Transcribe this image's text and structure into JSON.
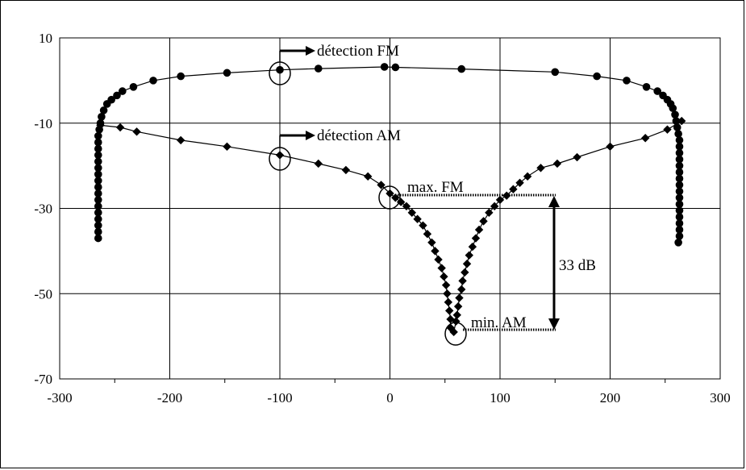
{
  "chart_data": {
    "type": "scatter",
    "title": "",
    "xlabel": "",
    "ylabel": "",
    "xlim": [
      -300,
      300
    ],
    "ylim": [
      -70,
      10
    ],
    "x_ticks": [
      -300,
      -200,
      -100,
      0,
      100,
      200,
      300
    ],
    "y_ticks": [
      10,
      -10,
      -30,
      -50,
      -70
    ],
    "x_tick_labels": [
      "-300",
      "-200",
      "-100",
      "0",
      "100",
      "200",
      "300"
    ],
    "y_tick_labels": [
      "10",
      "-10",
      "-30",
      "-50",
      "-70"
    ],
    "grid": true,
    "legend": "none",
    "series": [
      {
        "marker": "circle",
        "color": "#000000",
        "points": [
          [
            -265,
            -37
          ],
          [
            -265,
            -35.5
          ],
          [
            -265,
            -34
          ],
          [
            -265,
            -32.5
          ],
          [
            -265,
            -31
          ],
          [
            -265,
            -29.5
          ],
          [
            -265,
            -28
          ],
          [
            -265,
            -26.5
          ],
          [
            -265,
            -25
          ],
          [
            -265,
            -23.5
          ],
          [
            -265,
            -22
          ],
          [
            -265,
            -20.5
          ],
          [
            -265,
            -19
          ],
          [
            -265,
            -17.5
          ],
          [
            -265,
            -16
          ],
          [
            -265,
            -14.5
          ],
          [
            -265,
            -13
          ],
          [
            -264,
            -11.5
          ],
          [
            -263,
            -10
          ],
          [
            -262,
            -8.5
          ],
          [
            -260,
            -7
          ],
          [
            -257,
            -5.5
          ],
          [
            -253,
            -4.5
          ],
          [
            -248,
            -3.5
          ],
          [
            -243,
            -2.5
          ],
          [
            -233,
            -1.5
          ],
          [
            -215,
            0
          ],
          [
            -190,
            1
          ],
          [
            -148,
            1.8
          ],
          [
            -100,
            2.5
          ],
          [
            -65,
            2.8
          ],
          [
            -5,
            3.2
          ],
          [
            5,
            3.1
          ],
          [
            65,
            2.7
          ],
          [
            150,
            2
          ],
          [
            188,
            1
          ],
          [
            215,
            0
          ],
          [
            233,
            -1.5
          ],
          [
            243,
            -2.5
          ],
          [
            248,
            -3.5
          ],
          [
            252,
            -4.5
          ],
          [
            255,
            -5.5
          ],
          [
            257,
            -6.5
          ],
          [
            259,
            -8
          ],
          [
            260,
            -9.5
          ],
          [
            261,
            -11
          ],
          [
            262,
            -12.5
          ],
          [
            263,
            -14
          ],
          [
            263,
            -15.5
          ],
          [
            263,
            -17
          ],
          [
            263,
            -18.5
          ],
          [
            263,
            -20
          ],
          [
            263,
            -21.5
          ],
          [
            263,
            -23
          ],
          [
            263,
            -24.5
          ],
          [
            263,
            -26
          ],
          [
            263,
            -27.5
          ],
          [
            263,
            -29
          ],
          [
            263,
            -30.5
          ],
          [
            263,
            -32
          ],
          [
            263,
            -33.5
          ],
          [
            263,
            -35
          ],
          [
            263,
            -36.5
          ],
          [
            262,
            -38
          ]
        ]
      },
      {
        "marker": "diamond",
        "color": "#000000",
        "points": [
          [
            -263,
            -10.5
          ],
          [
            -245,
            -11
          ],
          [
            -230,
            -12
          ],
          [
            -190,
            -14
          ],
          [
            -148,
            -15.5
          ],
          [
            -100,
            -17.5
          ],
          [
            -65,
            -19.5
          ],
          [
            -40,
            -21
          ],
          [
            -20,
            -22.5
          ],
          [
            -8,
            -24.5
          ],
          [
            0,
            -26.5
          ],
          [
            5,
            -27.5
          ],
          [
            10,
            -28.5
          ],
          [
            15,
            -29.5
          ],
          [
            20,
            -31
          ],
          [
            25,
            -32.5
          ],
          [
            30,
            -34
          ],
          [
            34,
            -36
          ],
          [
            38,
            -38
          ],
          [
            41,
            -40
          ],
          [
            44,
            -42
          ],
          [
            47,
            -44
          ],
          [
            49,
            -46
          ],
          [
            51,
            -48
          ],
          [
            52,
            -50
          ],
          [
            53,
            -52
          ],
          [
            54,
            -54
          ],
          [
            55,
            -56
          ],
          [
            55,
            -58
          ],
          [
            58,
            -59
          ],
          [
            60,
            -56.5
          ],
          [
            61,
            -55
          ],
          [
            62,
            -53
          ],
          [
            63,
            -51
          ],
          [
            65,
            -49
          ],
          [
            66,
            -47
          ],
          [
            68,
            -45
          ],
          [
            70,
            -43
          ],
          [
            72,
            -41
          ],
          [
            75,
            -39
          ],
          [
            78,
            -37
          ],
          [
            81,
            -35
          ],
          [
            85,
            -33
          ],
          [
            90,
            -31
          ],
          [
            95,
            -29.5
          ],
          [
            100,
            -28
          ],
          [
            106,
            -27
          ],
          [
            112,
            -25.5
          ],
          [
            118,
            -24
          ],
          [
            125,
            -22.5
          ],
          [
            137,
            -20.5
          ],
          [
            152,
            -19.5
          ],
          [
            170,
            -18
          ],
          [
            200,
            -15.5
          ],
          [
            232,
            -13.5
          ],
          [
            252,
            -11.5
          ],
          [
            265,
            -9.5
          ]
        ]
      }
    ],
    "annotations": {
      "fm_detection": "détection FM",
      "am_detection": "détection AM",
      "max_fm": "max. FM",
      "min_am": "min. AM",
      "difference": "33 dB"
    }
  }
}
